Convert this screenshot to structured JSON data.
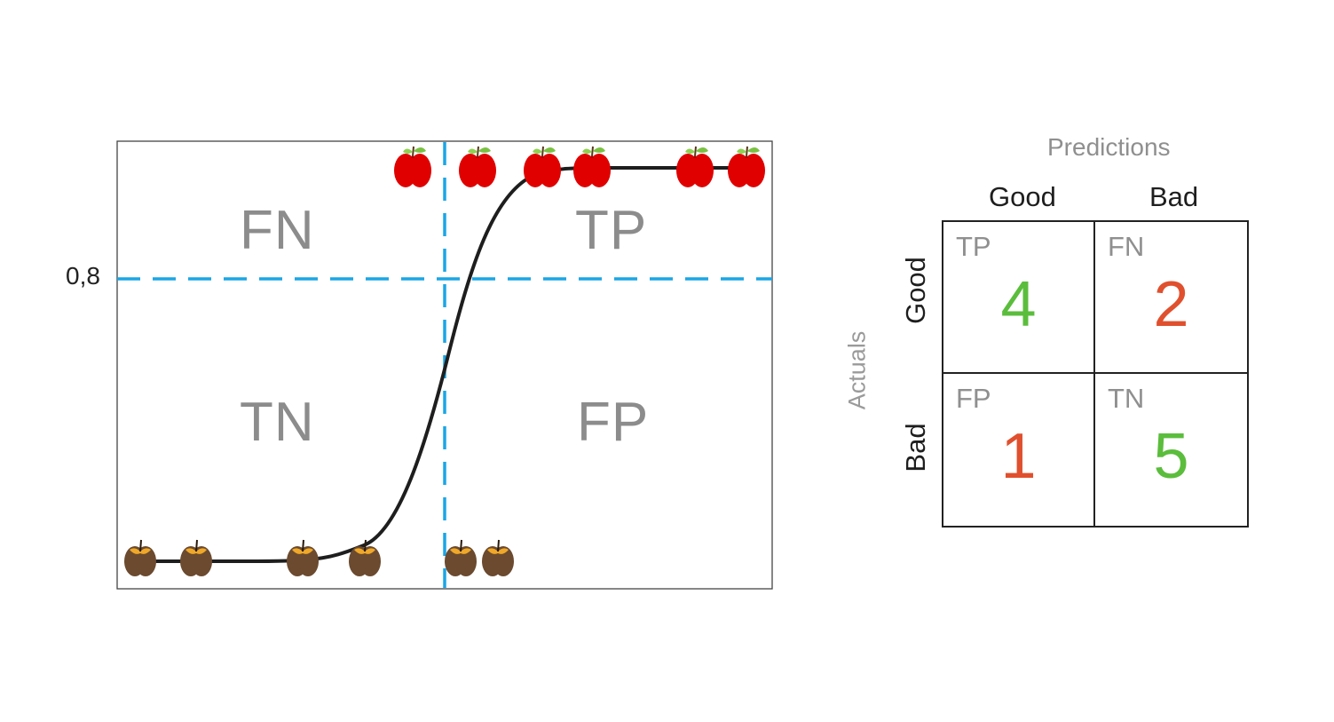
{
  "plot": {
    "threshold_label": "0,8",
    "quadrants": {
      "top_left": "FN",
      "top_right": "TP",
      "bottom_left": "TN",
      "bottom_right": "FP"
    },
    "colors": {
      "threshold": "#1aa6e6",
      "curve": "#1e1e1e",
      "good_apple": "#e00000",
      "bad_apple": "#6b4a2f"
    },
    "good_apples": 6,
    "bad_apples": 6
  },
  "confusion_matrix": {
    "title": "Predictions",
    "actuals_label": "Actuals",
    "columns": [
      "Good",
      "Bad"
    ],
    "rows": [
      "Good",
      "Bad"
    ],
    "cells": [
      [
        {
          "tag": "TP",
          "value": "4",
          "color": "#5bbd3c"
        },
        {
          "tag": "FN",
          "value": "2",
          "color": "#e0502e"
        }
      ],
      [
        {
          "tag": "FP",
          "value": "1",
          "color": "#e0502e"
        },
        {
          "tag": "TN",
          "value": "5",
          "color": "#5bbd3c"
        }
      ]
    ]
  }
}
